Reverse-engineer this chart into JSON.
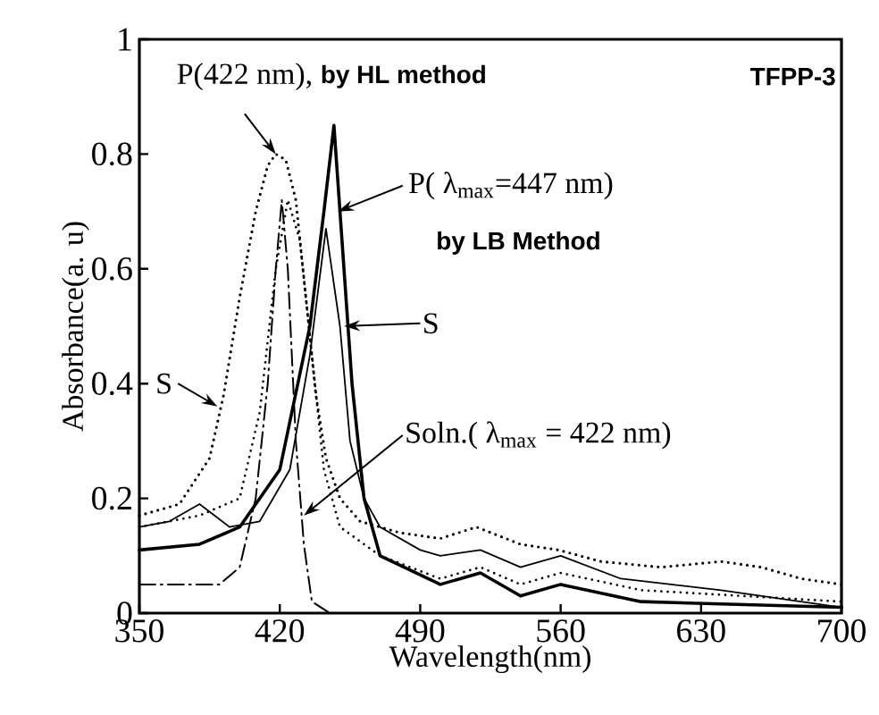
{
  "chart_data": {
    "type": "line",
    "xlabel": "Wavelength(nm)",
    "ylabel": "Absorbance(a. u)",
    "xlim": [
      350,
      700
    ],
    "ylim": [
      0,
      1
    ],
    "xticks": [
      350,
      420,
      490,
      560,
      630,
      700
    ],
    "yticks": [
      0,
      {
        "value": 0.2,
        "label": "0.2"
      },
      {
        "value": 0.4,
        "label": "0.4"
      },
      {
        "value": 0.6,
        "label": "0.6"
      },
      {
        "value": 0.8,
        "label": "0.8"
      },
      1
    ],
    "series": [
      {
        "color": "#000000",
        "line_style": "dotted",
        "x": [
          350,
          370,
          385,
          392,
          400,
          408,
          414,
          418,
          423,
          428,
          433,
          438,
          443,
          450,
          460,
          480,
          500,
          518,
          540,
          559,
          580,
          610,
          640,
          660,
          680,
          700
        ],
        "values": [
          0.17,
          0.19,
          0.27,
          0.38,
          0.55,
          0.7,
          0.78,
          0.8,
          0.79,
          0.72,
          0.55,
          0.38,
          0.27,
          0.2,
          0.16,
          0.14,
          0.13,
          0.15,
          0.12,
          0.11,
          0.09,
          0.08,
          0.09,
          0.08,
          0.06,
          0.05
        ]
      },
      {
        "color": "#000000",
        "line_style": "dotted",
        "x": [
          350,
          380,
          400,
          410,
          418,
          424,
          430,
          436,
          442,
          450,
          470,
          500,
          520,
          540,
          560,
          600,
          650,
          700
        ],
        "values": [
          0.15,
          0.17,
          0.2,
          0.35,
          0.6,
          0.72,
          0.65,
          0.45,
          0.25,
          0.15,
          0.1,
          0.06,
          0.08,
          0.05,
          0.07,
          0.04,
          0.03,
          0.02
        ]
      },
      {
        "color": "#000000",
        "line_style": "solid",
        "x": [
          350,
          365,
          380,
          395,
          410,
          425,
          435,
          443,
          450,
          455,
          462,
          470,
          490,
          500,
          520,
          540,
          560,
          590,
          640,
          700
        ],
        "values": [
          0.15,
          0.16,
          0.19,
          0.15,
          0.16,
          0.25,
          0.45,
          0.67,
          0.5,
          0.3,
          0.2,
          0.15,
          0.11,
          0.1,
          0.11,
          0.08,
          0.1,
          0.06,
          0.04,
          0.01
        ]
      },
      {
        "color": "#000000",
        "line_style": "solid",
        "x": [
          350,
          380,
          400,
          420,
          435,
          442,
          447,
          452,
          456,
          462,
          470,
          500,
          520,
          540,
          560,
          600,
          650,
          700
        ],
        "values": [
          0.11,
          0.12,
          0.15,
          0.25,
          0.5,
          0.7,
          0.85,
          0.6,
          0.4,
          0.2,
          0.1,
          0.05,
          0.07,
          0.03,
          0.05,
          0.02,
          0.015,
          0.01
        ]
      },
      {
        "color": "#000000",
        "line_style": "dashed",
        "x": [
          350,
          390,
          400,
          408,
          414,
          418,
          421,
          424,
          428,
          432,
          436,
          445,
          700
        ],
        "values": [
          0.05,
          0.05,
          0.08,
          0.2,
          0.4,
          0.6,
          0.72,
          0.6,
          0.3,
          0.12,
          0.02,
          0,
          0
        ]
      }
    ],
    "annotations": [
      {
        "text": "P(422 nm),",
        "x": 418,
        "y": 0.8
      },
      "by HL method",
      "TFPP-3",
      {
        "text": "P( λ$_{max}$=447 nm)",
        "x": 449,
        "y": 0.7
      },
      "by LB Method",
      {
        "text": "S",
        "x": 452,
        "y": 0.5
      },
      {
        "text": "S",
        "x": 389,
        "y": 0.36
      },
      {
        "text": "Soln.( λ$_{max}$ = 422 nm)",
        "x": 432,
        "y": 0.17
      }
    ]
  }
}
